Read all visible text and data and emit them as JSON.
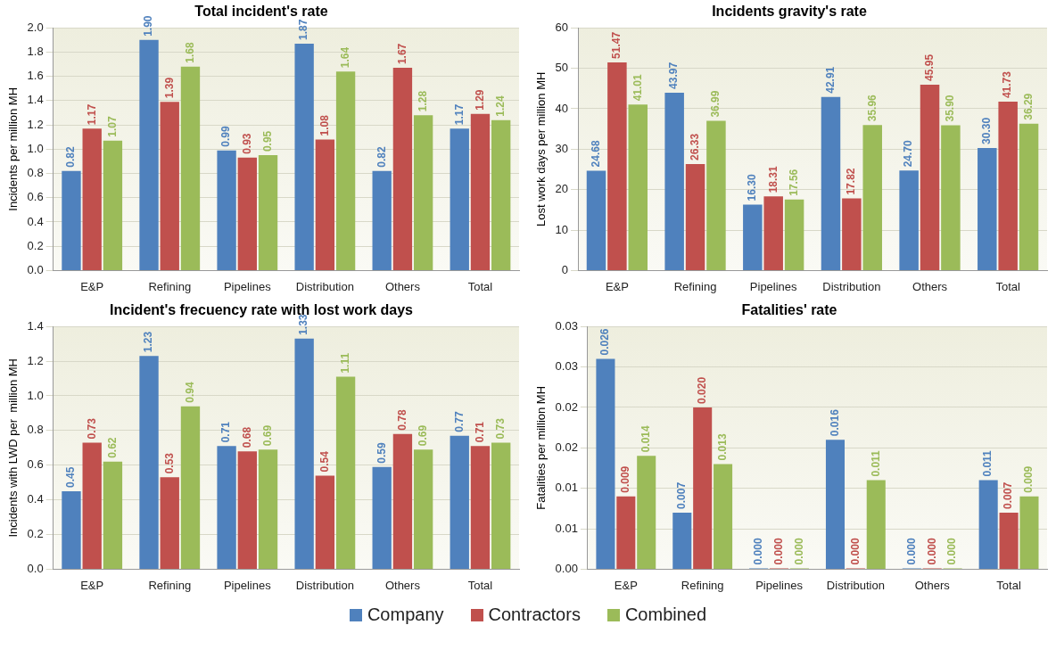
{
  "chart_data": [
    {
      "type": "bar",
      "title": "Total incident's rate",
      "ylabel": "Incidents per million MH",
      "categories": [
        "E&P",
        "Refining",
        "Pipelines",
        "Distribution",
        "Others",
        "Total"
      ],
      "series": [
        {
          "name": "Company",
          "color": "#4f81bd",
          "values": [
            0.82,
            1.9,
            0.99,
            1.87,
            0.82,
            1.17
          ],
          "value_labels": [
            "0.82",
            "1.90",
            "0.99",
            "1.87",
            "0.82",
            "1.17"
          ]
        },
        {
          "name": "Contractors",
          "color": "#c0504d",
          "values": [
            1.17,
            1.39,
            0.93,
            1.08,
            1.67,
            1.29
          ],
          "value_labels": [
            "1.17",
            "1.39",
            "0.93",
            "1.08",
            "1.67",
            "1.29"
          ]
        },
        {
          "name": "Combined",
          "color": "#9bbb59",
          "values": [
            1.07,
            1.68,
            0.95,
            1.64,
            1.28,
            1.24
          ],
          "value_labels": [
            "1.07",
            "1.68",
            "0.95",
            "1.64",
            "1.28",
            "1.24"
          ]
        }
      ],
      "ylim": [
        0,
        2
      ],
      "yticks": [
        {
          "value": 0,
          "label": "0.0"
        },
        {
          "value": 0.2,
          "label": "0.2"
        },
        {
          "value": 0.4,
          "label": "0.4"
        },
        {
          "value": 0.6,
          "label": "0.6"
        },
        {
          "value": 0.8,
          "label": "0.8"
        },
        {
          "value": 1,
          "label": "1.0"
        },
        {
          "value": 1.2,
          "label": "1.2"
        },
        {
          "value": 1.4,
          "label": "1.4"
        },
        {
          "value": 1.6,
          "label": "1.6"
        },
        {
          "value": 1.8,
          "label": "1.8"
        },
        {
          "value": 2,
          "label": "2.0"
        }
      ],
      "grid": "y",
      "legend": "bottom"
    },
    {
      "type": "bar",
      "title": "Incidents gravity's rate",
      "ylabel": "Lost work days per million MH",
      "categories": [
        "E&P",
        "Refining",
        "Pipelines",
        "Distribution",
        "Others",
        "Total"
      ],
      "series": [
        {
          "color": "#4f81bd",
          "values": [
            24.68,
            43.97,
            16.3,
            42.91,
            24.7,
            30.3
          ],
          "value_labels": [
            "24.68",
            "43.97",
            "16.30",
            "42.91",
            "24.70",
            "30.30"
          ]
        },
        {
          "color": "#c0504d",
          "values": [
            51.47,
            26.33,
            18.31,
            17.82,
            45.95,
            41.73
          ],
          "value_labels": [
            "51.47",
            "26.33",
            "18.31",
            "17.82",
            "45.95",
            "41.73"
          ]
        },
        {
          "color": "#9bbb59",
          "values": [
            41.01,
            36.99,
            17.56,
            35.96,
            35.9,
            36.29
          ],
          "value_labels": [
            "41.01",
            "36.99",
            "17.56",
            "35.96",
            "35.90",
            "36.29"
          ]
        }
      ],
      "ylim": [
        0,
        60
      ],
      "yticks": [
        0,
        10,
        20,
        30,
        40,
        50,
        60
      ],
      "grid": "y"
    },
    {
      "type": "bar",
      "title": "Incident's frecuency rate with lost work days",
      "ylabel": "Incidents with LWD per  million MH",
      "categories": [
        "E&P",
        "Refining",
        "Pipelines",
        "Distribution",
        "Others",
        "Total"
      ],
      "series": [
        {
          "color": "#4f81bd",
          "values": [
            0.45,
            1.23,
            0.71,
            1.33,
            0.59,
            0.77
          ],
          "value_labels": [
            "0.45",
            "1.23",
            "0.71",
            "1.33",
            "0.59",
            "0.77"
          ]
        },
        {
          "color": "#c0504d",
          "values": [
            0.73,
            0.53,
            0.68,
            0.54,
            0.78,
            0.71
          ],
          "value_labels": [
            "0.73",
            "0.53",
            "0.68",
            "0.54",
            "0.78",
            "0.71"
          ]
        },
        {
          "color": "#9bbb59",
          "values": [
            0.62,
            0.94,
            0.69,
            1.11,
            0.69,
            0.73
          ],
          "value_labels": [
            "0.62",
            "0.94",
            "0.69",
            "1.11",
            "0.69",
            "0.73"
          ]
        }
      ],
      "ylim": [
        0,
        1.4
      ],
      "yticks": [
        {
          "value": 0,
          "label": "0.0"
        },
        {
          "value": 0.2,
          "label": "0.2"
        },
        {
          "value": 0.4,
          "label": "0.4"
        },
        {
          "value": 0.6,
          "label": "0.6"
        },
        {
          "value": 0.8,
          "label": "0.8"
        },
        {
          "value": 1,
          "label": "1.0"
        },
        {
          "value": 1.2,
          "label": "1.2"
        },
        {
          "value": 1.4,
          "label": "1.4"
        }
      ],
      "grid": "y"
    },
    {
      "type": "bar",
      "title": "Fatalities' rate",
      "ylabel": "Fatalities per million MH",
      "categories": [
        "E&P",
        "Refining",
        "Pipelines",
        "Distribution",
        "Others",
        "Total"
      ],
      "series": [
        {
          "color": "#4f81bd",
          "values": [
            0.026,
            0.007,
            0,
            0.016,
            0,
            0.011
          ],
          "value_labels": [
            "0.026",
            "0.007",
            "0.000",
            "0.016",
            "0.000",
            "0.011"
          ]
        },
        {
          "color": "#c0504d",
          "values": [
            0.009,
            0.02,
            0,
            0,
            0,
            0.007
          ],
          "value_labels": [
            "0.009",
            "0.020",
            "0.000",
            "0.000",
            "0.000",
            "0.007"
          ]
        },
        {
          "color": "#9bbb59",
          "values": [
            0.014,
            0.013,
            0,
            0.011,
            0,
            0.009
          ],
          "value_labels": [
            "0.014",
            "0.013",
            "0.000",
            "0.011",
            "0.000",
            "0.009"
          ]
        }
      ],
      "ylim": [
        0,
        0.03
      ],
      "yticks": [
        {
          "value": 0,
          "label": "0.00"
        },
        {
          "value": 0.005,
          "label": "0.01"
        },
        {
          "value": 0.01,
          "label": "0.01"
        },
        {
          "value": 0.015,
          "label": "0.02"
        },
        {
          "value": 0.02,
          "label": "0.02"
        },
        {
          "value": 0.025,
          "label": "0.03"
        },
        {
          "value": 0.03,
          "label": "0.03"
        }
      ],
      "grid": "y"
    }
  ]
}
